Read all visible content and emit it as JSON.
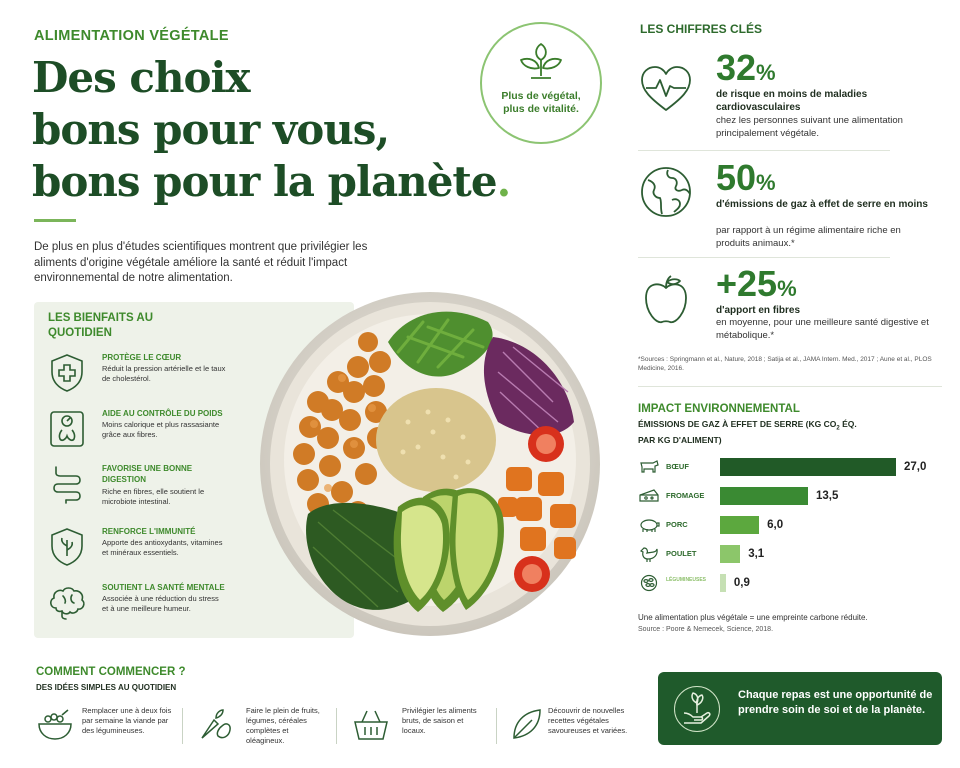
{
  "header": {
    "eyebrow": "ALIMENTATION VÉGÉTALE",
    "headline_line1": "Des choix",
    "headline_line2": "bons pour vous,",
    "headline_line3": "bons pour la planète",
    "headline_dot": ".",
    "intro": "De plus en plus d'études scientifiques montrent que privilégier les aliments d'origine végétale améliore la santé et réduit l'impact environnemental de notre alimentation."
  },
  "badge": {
    "icon": "sprout-icon",
    "text": "Plus de végétal, plus de vitalité."
  },
  "benefits": {
    "title": "LES BIENFAITS AU QUOTIDIEN",
    "items": [
      {
        "icon": "shield-cross-icon",
        "title": "PROTÈGE LE CŒUR",
        "desc": "Réduit la pression artérielle et le taux de cholestérol."
      },
      {
        "icon": "scale-icon",
        "title": "AIDE AU CONTRÔLE DU POIDS",
        "desc": "Moins calorique et plus rassasiante grâce aux fibres."
      },
      {
        "icon": "intestine-icon",
        "title": "FAVORISE UNE BONNE DIGESTION",
        "desc": "Riche en fibres, elle soutient le microbiote intestinal."
      },
      {
        "icon": "shield-leaf-icon",
        "title": "RENFORCE L'IMMUNITÉ",
        "desc": "Apporte des antioxydants, vitamines et minéraux essentiels."
      },
      {
        "icon": "brain-icon",
        "title": "SOUTIENT LA SANTÉ MENTALE",
        "desc": "Associée à une réduction du stress et à une meilleure humeur."
      }
    ]
  },
  "key_figures": {
    "title": "LES CHIFFRES CLÉS",
    "items": [
      {
        "icon": "heart-pulse-icon",
        "value": "32",
        "unit": "%",
        "bold": "de risque en moins de maladies cardiovasculaires",
        "text": "chez les personnes suivant une alimentation principalement végétale."
      },
      {
        "icon": "globe-icon",
        "value": "50",
        "unit": "%",
        "bold": "d'émissions de gaz à effet de serre en moins",
        "text": "par rapport à un régime alimentaire riche en produits animaux.*"
      },
      {
        "icon": "apple-icon",
        "value": "+25",
        "unit": "%",
        "bold": "d'apport en fibres",
        "text": "en moyenne, pour une meilleure santé digestive et métabolique.*"
      }
    ],
    "sources": "*Sources : Springmann et al., Nature, 2018 ; Satija et al., JAMA Intern. Med., 2017 ; Aune et al., PLOS Medicine, 2016."
  },
  "impact": {
    "title": "IMPACT ENVIRONNEMENTAL",
    "subtitle_a": "ÉMISSIONS DE GAZ À EFFET DE SERRE (KG CO",
    "subtitle_sub": "2",
    "subtitle_b": " ÉQ. PAR KG D'ALIMENT)",
    "note": "Une alimentation plus végétale = une empreinte carbone réduite.",
    "source": "Source : Poore & Nemecek, Science, 2018.",
    "colors": [
      "#215a27",
      "#3a8a33",
      "#5ca83e",
      "#8cc66a",
      "#c6e0b4"
    ]
  },
  "chart_data": {
    "type": "bar",
    "orientation": "horizontal",
    "categories": [
      "BŒUF",
      "FROMAGE",
      "PORC",
      "POULET",
      "LÉGUMINEUSES"
    ],
    "values": [
      27.0,
      13.5,
      6.0,
      3.1,
      0.9
    ],
    "value_labels": [
      "27,0",
      "13,5",
      "6,0",
      "3,1",
      "0,9"
    ],
    "xlim": [
      0,
      27
    ],
    "grid": false
  },
  "start": {
    "title": "COMMENT COMMENCER ?",
    "subtitle": "DES IDÉES SIMPLES AU QUOTIDIEN",
    "tips": [
      {
        "icon": "bowl-icon",
        "text": "Remplacer une à deux fois par semaine la viande par des légumineuses."
      },
      {
        "icon": "vegetables-icon",
        "text": "Faire le plein de fruits, légumes, céréales complètes et oléagineux."
      },
      {
        "icon": "basket-icon",
        "text": "Privilégier les aliments bruts, de saison et locaux."
      },
      {
        "icon": "leaf-icon",
        "text": "Découvrir de nouvelles recettes végétales savoureuses et variées."
      }
    ]
  },
  "cta": {
    "icon": "hand-sprout-icon",
    "text": "Chaque repas est une opportunité de prendre soin de soi et de la planète."
  }
}
